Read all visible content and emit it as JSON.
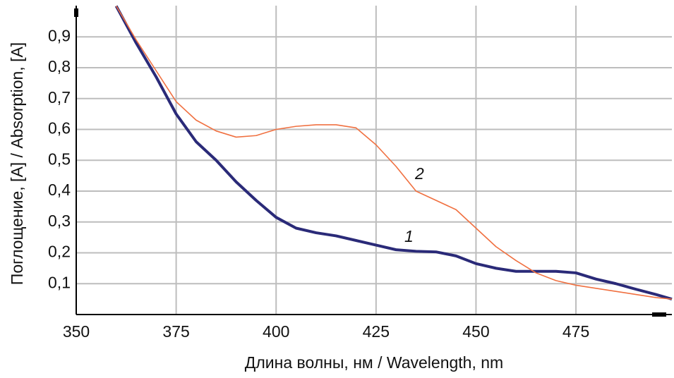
{
  "chart_data": {
    "type": "line",
    "x_label": "Длина волны, нм / Wavelength, nm",
    "y_label": "Поглощение, [A] / Absorption, [A]",
    "x": [
      360,
      365,
      370,
      375,
      380,
      385,
      390,
      395,
      400,
      405,
      410,
      415,
      420,
      425,
      430,
      435,
      440,
      445,
      450,
      455,
      460,
      465,
      470,
      475,
      480,
      485,
      490,
      495,
      499
    ],
    "series": [
      {
        "name": "1",
        "color": "#2a2a78",
        "values": [
          1.0,
          0.88,
          0.77,
          0.65,
          0.56,
          0.5,
          0.43,
          0.37,
          0.315,
          0.28,
          0.265,
          0.255,
          0.24,
          0.225,
          0.21,
          0.205,
          0.203,
          0.19,
          0.165,
          0.15,
          0.14,
          0.14,
          0.14,
          0.135,
          0.115,
          0.1,
          0.082,
          0.065,
          0.05
        ]
      },
      {
        "name": "2",
        "color": "#f07040",
        "values": [
          1.0,
          0.89,
          0.79,
          0.69,
          0.63,
          0.595,
          0.575,
          0.58,
          0.6,
          0.61,
          0.615,
          0.615,
          0.605,
          0.55,
          0.48,
          0.4,
          0.37,
          0.34,
          0.28,
          0.22,
          0.175,
          0.135,
          0.11,
          0.095,
          0.085,
          0.075,
          0.065,
          0.055,
          0.05
        ]
      }
    ],
    "xlim": [
      350,
      499
    ],
    "ylim": [
      0,
      1
    ],
    "xticks": [
      350,
      375,
      400,
      425,
      450,
      475
    ],
    "yticks": [
      {
        "value": 0.1,
        "label": "0,1"
      },
      {
        "value": 0.2,
        "label": "0,2"
      },
      {
        "value": 0.3,
        "label": "0,3"
      },
      {
        "value": 0.4,
        "label": "0,4"
      },
      {
        "value": 0.5,
        "label": "0,5"
      },
      {
        "value": 0.6,
        "label": "0,6"
      },
      {
        "value": 0.7,
        "label": "0,7"
      },
      {
        "value": 0.8,
        "label": "0,8"
      },
      {
        "value": 0.9,
        "label": "0,9"
      }
    ],
    "grid": true
  }
}
